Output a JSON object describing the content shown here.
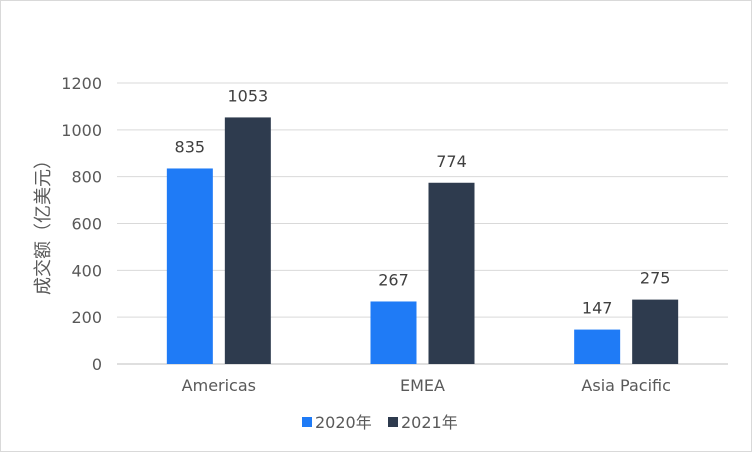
{
  "chart_data": {
    "type": "bar",
    "title": "",
    "xlabel": "",
    "ylabel": "成交额（亿美元）",
    "ylim": [
      0,
      1200
    ],
    "yticks": [
      0,
      200,
      400,
      600,
      800,
      1000,
      1200
    ],
    "grid": true,
    "legend_position": "bottom",
    "categories": [
      "Americas",
      "EMEA",
      "Asia Pacific"
    ],
    "series": [
      {
        "name": "2020年",
        "values": [
          835,
          267,
          147
        ],
        "color": "#1f7bf6"
      },
      {
        "name": "2021年",
        "values": [
          1053,
          774,
          275
        ],
        "color": "#2e3b4e"
      }
    ]
  }
}
